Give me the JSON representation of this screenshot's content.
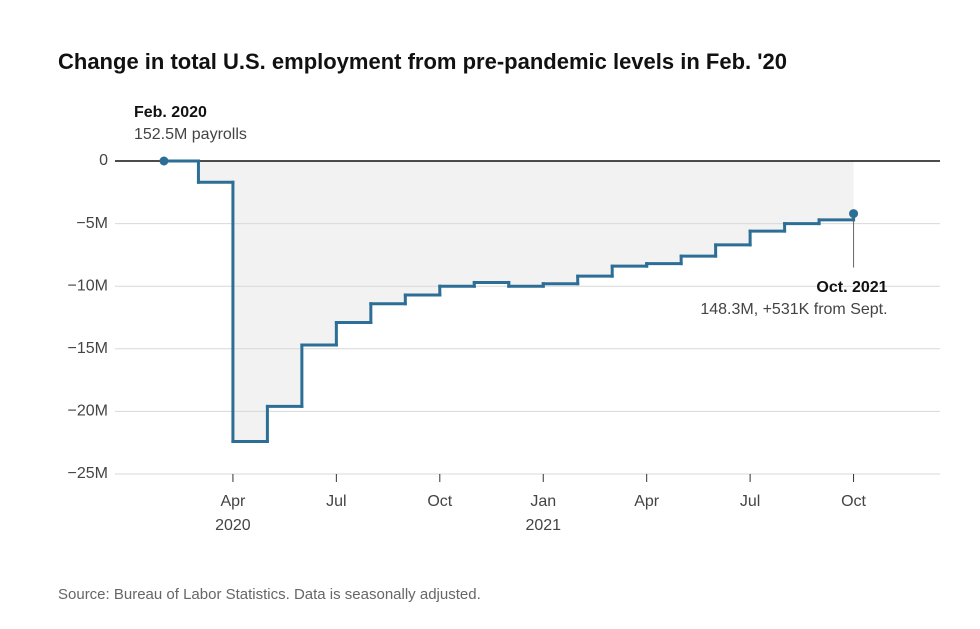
{
  "chart_data": {
    "type": "step",
    "title": "Change in total U.S. employment from pre-pandemic levels in Feb. '20",
    "annotations": [
      {
        "title": "Feb. 2020",
        "text": "152.5M payrolls",
        "x": "2020-02"
      },
      {
        "title": "Oct. 2021",
        "text": "148.3M, +531K from Sept.",
        "x": "2021-10"
      }
    ],
    "source": "Source: Bureau of Labor Statistics. Data is seasonally adjusted.",
    "x": [
      "2020-02",
      "2020-03",
      "2020-04",
      "2020-05",
      "2020-06",
      "2020-07",
      "2020-08",
      "2020-09",
      "2020-10",
      "2020-11",
      "2020-12",
      "2021-01",
      "2021-02",
      "2021-03",
      "2021-04",
      "2021-05",
      "2021-06",
      "2021-07",
      "2021-08",
      "2021-09",
      "2021-10"
    ],
    "values": [
      0,
      -1.7,
      -22.4,
      -19.6,
      -14.7,
      -12.9,
      -11.4,
      -10.7,
      -10.0,
      -9.7,
      -10.0,
      -9.8,
      -9.2,
      -8.4,
      -8.2,
      -7.6,
      -6.7,
      -5.6,
      -5.0,
      -4.7,
      -4.2
    ],
    "color": "#2d6e96",
    "area_color": "#f2f2f2",
    "xlim": [
      "2019-12",
      "2022-01"
    ],
    "xticks": [
      {
        "value": "2020-04",
        "label": "Apr"
      },
      {
        "value": "2020-07",
        "label": "Jul"
      },
      {
        "value": "2020-10",
        "label": "Oct"
      },
      {
        "value": "2021-01",
        "label": "Jan"
      },
      {
        "value": "2021-04",
        "label": "Apr"
      },
      {
        "value": "2021-07",
        "label": "Jul"
      },
      {
        "value": "2021-10",
        "label": "Oct"
      }
    ],
    "year_labels": [
      {
        "value": "2020-04",
        "label": "2020"
      },
      {
        "value": "2021-01",
        "label": "2021"
      }
    ],
    "ylim": [
      -25,
      0
    ],
    "yticks": [
      0,
      {
        "value": -5,
        "label": "−5M"
      },
      {
        "value": -10,
        "label": "−10M"
      },
      {
        "value": -15,
        "label": "−15M"
      },
      {
        "value": -20,
        "label": "−20M"
      },
      {
        "value": -25,
        "label": "−25M"
      }
    ],
    "grid": true
  }
}
